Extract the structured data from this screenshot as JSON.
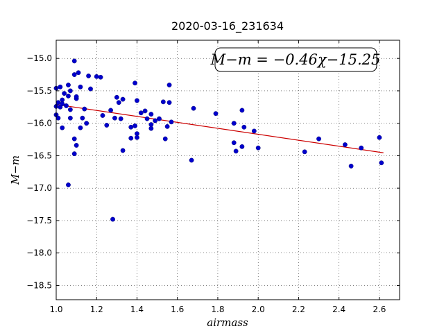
{
  "chart_data": {
    "type": "scatter",
    "title": "2020-03-16_231634",
    "xlabel": "airmass",
    "ylabel": "M−m",
    "xlim": [
      1.0,
      2.7
    ],
    "ylim": [
      -18.72,
      -14.72
    ],
    "y_inverted": true,
    "grid": true,
    "grid_style": "dotted",
    "x_ticks": [
      1.0,
      1.2,
      1.4,
      1.6,
      1.8,
      2.0,
      2.2,
      2.4,
      2.6
    ],
    "x_tick_labels": [
      "1.0",
      "1.2",
      "1.4",
      "1.6",
      "1.8",
      "2.0",
      "2.2",
      "2.4",
      "2.6"
    ],
    "y_ticks": [
      -15.0,
      -15.5,
      -16.0,
      -16.5,
      -17.0,
      -17.5,
      -18.0,
      -18.5
    ],
    "y_tick_labels": [
      "−15.0",
      "−15.5",
      "−16.0",
      "−16.5",
      "−17.0",
      "−17.5",
      "−18.0",
      "−18.5"
    ],
    "annotation": "M−m = −0.46χ−15.25",
    "fit_line": {
      "slope": -0.46,
      "intercept": -15.25,
      "x_range": [
        1.0,
        2.62
      ],
      "color": "#cc0000"
    },
    "point_color": "#0000cc",
    "points": [
      [
        1.0,
        -15.46
      ],
      [
        1.0,
        -15.74
      ],
      [
        1.0,
        -15.87
      ],
      [
        1.01,
        -15.92
      ],
      [
        1.01,
        -15.68
      ],
      [
        1.02,
        -15.44
      ],
      [
        1.02,
        -15.75
      ],
      [
        1.03,
        -15.64
      ],
      [
        1.03,
        -15.7
      ],
      [
        1.03,
        -16.07
      ],
      [
        1.04,
        -15.54
      ],
      [
        1.05,
        -15.73
      ],
      [
        1.06,
        -15.41
      ],
      [
        1.06,
        -15.58
      ],
      [
        1.06,
        -16.95
      ],
      [
        1.07,
        -15.5
      ],
      [
        1.07,
        -15.79
      ],
      [
        1.07,
        -15.92
      ],
      [
        1.09,
        -15.04
      ],
      [
        1.09,
        -15.25
      ],
      [
        1.09,
        -16.24
      ],
      [
        1.09,
        -16.47
      ],
      [
        1.1,
        -15.62
      ],
      [
        1.1,
        -15.59
      ],
      [
        1.1,
        -16.34
      ],
      [
        1.11,
        -15.22
      ],
      [
        1.12,
        -15.44
      ],
      [
        1.12,
        -16.07
      ],
      [
        1.13,
        -15.92
      ],
      [
        1.14,
        -15.78
      ],
      [
        1.15,
        -16.0
      ],
      [
        1.16,
        -15.27
      ],
      [
        1.17,
        -15.47
      ],
      [
        1.2,
        -15.28
      ],
      [
        1.22,
        -15.29
      ],
      [
        1.23,
        -15.88
      ],
      [
        1.25,
        -16.03
      ],
      [
        1.27,
        -15.8
      ],
      [
        1.28,
        -17.48
      ],
      [
        1.29,
        -15.92
      ],
      [
        1.3,
        -15.6
      ],
      [
        1.31,
        -15.68
      ],
      [
        1.32,
        -15.93
      ],
      [
        1.33,
        -15.63
      ],
      [
        1.33,
        -16.42
      ],
      [
        1.37,
        -16.06
      ],
      [
        1.37,
        -16.23
      ],
      [
        1.39,
        -15.38
      ],
      [
        1.39,
        -16.04
      ],
      [
        1.4,
        -15.65
      ],
      [
        1.4,
        -16.16
      ],
      [
        1.4,
        -16.22
      ],
      [
        1.42,
        -15.84
      ],
      [
        1.44,
        -15.81
      ],
      [
        1.45,
        -15.93
      ],
      [
        1.47,
        -15.86
      ],
      [
        1.47,
        -16.02
      ],
      [
        1.47,
        -16.08
      ],
      [
        1.49,
        -15.96
      ],
      [
        1.51,
        -15.93
      ],
      [
        1.53,
        -15.67
      ],
      [
        1.54,
        -16.24
      ],
      [
        1.55,
        -16.05
      ],
      [
        1.56,
        -15.41
      ],
      [
        1.56,
        -15.68
      ],
      [
        1.57,
        -15.98
      ],
      [
        1.67,
        -16.57
      ],
      [
        1.68,
        -15.77
      ],
      [
        1.79,
        -15.85
      ],
      [
        1.88,
        -16.0
      ],
      [
        1.88,
        -16.3
      ],
      [
        1.89,
        -16.43
      ],
      [
        1.92,
        -15.8
      ],
      [
        1.92,
        -16.36
      ],
      [
        1.93,
        -16.06
      ],
      [
        1.98,
        -16.12
      ],
      [
        2.0,
        -16.38
      ],
      [
        2.23,
        -16.44
      ],
      [
        2.3,
        -16.24
      ],
      [
        2.43,
        -16.33
      ],
      [
        2.46,
        -16.66
      ],
      [
        2.51,
        -16.38
      ],
      [
        2.6,
        -16.22
      ],
      [
        2.61,
        -16.61
      ]
    ]
  }
}
